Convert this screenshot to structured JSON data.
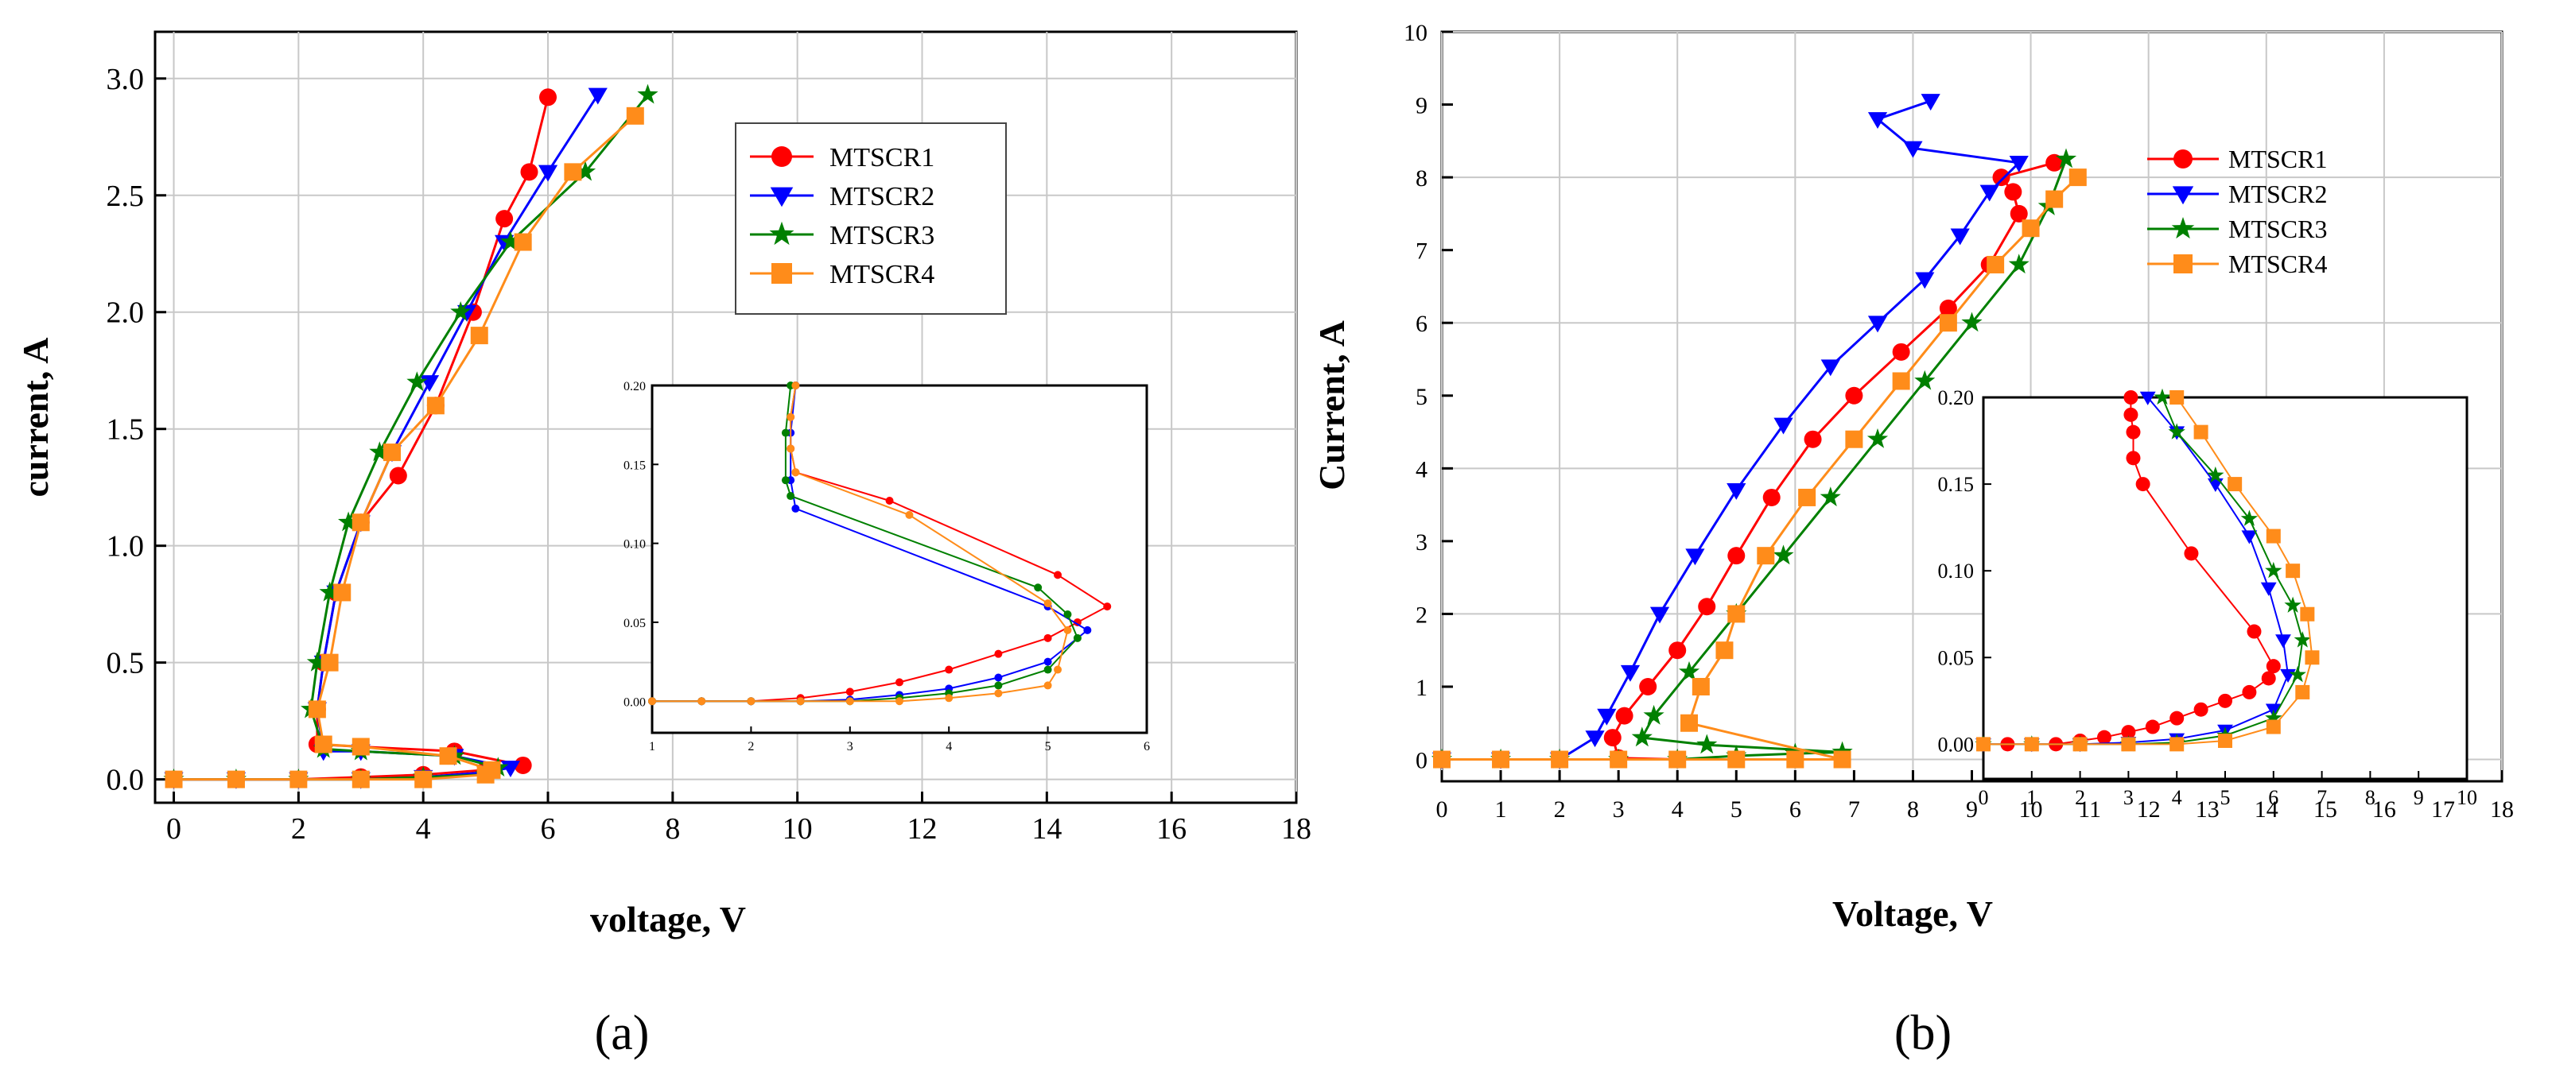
{
  "chart_data": [
    {
      "type": "scatter",
      "panel_label": "(a)",
      "xlabel": "voltage, V",
      "ylabel": "current, A",
      "xlim": [
        -0.3,
        18
      ],
      "ylim": [
        -0.1,
        3.2
      ],
      "xticks": [
        0,
        2,
        4,
        6,
        8,
        10,
        12,
        14,
        16,
        18
      ],
      "yticks": [
        0.0,
        0.5,
        1.0,
        1.5,
        2.0,
        2.5,
        3.0
      ],
      "xtick_labels": [
        "0",
        "2",
        "4",
        "6",
        "8",
        "10",
        "12",
        "14",
        "16",
        "18"
      ],
      "ytick_labels": [
        "0.0",
        "0.5",
        "1.0",
        "1.5",
        "2.0",
        "2.5",
        "3.0"
      ],
      "grid": true,
      "legend_position": "top-right",
      "series": [
        {
          "name": "MTSCR1",
          "color": "#ff0000",
          "marker": "circle",
          "x": [
            0,
            1,
            2,
            3,
            4,
            5,
            5.6,
            4.5,
            3.0,
            2.3,
            2.3,
            2.4,
            2.6,
            3.0,
            3.6,
            4.2,
            4.8,
            5.3,
            5.7,
            6.0
          ],
          "y": [
            0,
            0,
            0,
            0.01,
            0.02,
            0.04,
            0.06,
            0.12,
            0.14,
            0.15,
            0.3,
            0.5,
            0.8,
            1.1,
            1.3,
            1.6,
            2.0,
            2.4,
            2.6,
            2.92
          ]
        },
        {
          "name": "MTSCR2",
          "color": "#0000ff",
          "marker": "triangle-down",
          "x": [
            0,
            1,
            2,
            3,
            4,
            5,
            5.4,
            4.5,
            3.0,
            2.4,
            2.3,
            2.4,
            2.6,
            3.0,
            3.5,
            4.1,
            4.7,
            5.3,
            6.0,
            6.8
          ],
          "y": [
            0,
            0,
            0,
            0,
            0.01,
            0.03,
            0.05,
            0.1,
            0.12,
            0.12,
            0.3,
            0.5,
            0.8,
            1.1,
            1.4,
            1.7,
            2.0,
            2.3,
            2.6,
            2.93
          ]
        },
        {
          "name": "MTSCR3",
          "color": "#008000",
          "marker": "star",
          "x": [
            0,
            1,
            2,
            3,
            4,
            5,
            5.2,
            4.5,
            3.0,
            2.4,
            2.2,
            2.3,
            2.5,
            2.8,
            3.3,
            3.9,
            4.6,
            5.4,
            6.6,
            7.6
          ],
          "y": [
            0,
            0,
            0,
            0,
            0.01,
            0.02,
            0.05,
            0.1,
            0.12,
            0.13,
            0.3,
            0.5,
            0.8,
            1.1,
            1.4,
            1.7,
            2.0,
            2.3,
            2.6,
            2.93
          ]
        },
        {
          "name": "MTSCR4",
          "color": "#ff8c1a",
          "marker": "square",
          "x": [
            0,
            1,
            2,
            3,
            4,
            5,
            5.1,
            4.4,
            3.0,
            2.4,
            2.3,
            2.5,
            2.7,
            3.0,
            3.5,
            4.2,
            4.9,
            5.6,
            6.4,
            7.4
          ],
          "y": [
            0,
            0,
            0,
            0,
            0,
            0.02,
            0.04,
            0.1,
            0.14,
            0.15,
            0.3,
            0.5,
            0.8,
            1.1,
            1.4,
            1.6,
            1.9,
            2.3,
            2.6,
            2.84
          ]
        }
      ],
      "inset": {
        "xlim": [
          1,
          6
        ],
        "ylim": [
          -0.02,
          0.2
        ],
        "xticks": [
          1,
          2,
          3,
          4,
          5,
          6
        ],
        "yticks": [
          0.0,
          0.05,
          0.1,
          0.15,
          0.2
        ],
        "xtick_labels": [
          "1",
          "2",
          "3",
          "4",
          "5",
          "6"
        ],
        "ytick_labels": [
          "0.00",
          "0.05",
          "0.10",
          "0.15",
          "0.20"
        ],
        "series": [
          {
            "name": "MTSCR1",
            "x": [
              1,
              1.5,
              2,
              2.5,
              3,
              3.5,
              4,
              4.5,
              5,
              5.3,
              5.6,
              5.1,
              3.4,
              2.45,
              2.4,
              2.4,
              2.45
            ],
            "y": [
              0,
              0,
              0,
              0.002,
              0.006,
              0.012,
              0.02,
              0.03,
              0.04,
              0.05,
              0.06,
              0.08,
              0.127,
              0.145,
              0.16,
              0.18,
              0.2
            ]
          },
          {
            "name": "MTSCR2",
            "x": [
              1,
              1.5,
              2,
              2.5,
              3,
              3.5,
              4,
              4.5,
              5,
              5.4,
              5.0,
              2.45,
              2.4,
              2.4,
              2.45
            ],
            "y": [
              0,
              0,
              0,
              0,
              0.001,
              0.004,
              0.008,
              0.015,
              0.025,
              0.045,
              0.06,
              0.122,
              0.14,
              0.17,
              0.2
            ]
          },
          {
            "name": "MTSCR3",
            "x": [
              1,
              1.5,
              2,
              2.5,
              3,
              3.5,
              4,
              4.5,
              5,
              5.3,
              5.2,
              4.9,
              2.4,
              2.35,
              2.35,
              2.4
            ],
            "y": [
              0,
              0,
              0,
              0,
              0,
              0.002,
              0.005,
              0.01,
              0.02,
              0.04,
              0.055,
              0.072,
              0.13,
              0.14,
              0.17,
              0.2
            ]
          },
          {
            "name": "MTSCR4",
            "x": [
              1,
              1.5,
              2,
              2.5,
              3,
              3.5,
              4,
              4.5,
              5,
              5.1,
              5.2,
              5.0,
              3.6,
              2.45,
              2.4,
              2.4,
              2.45
            ],
            "y": [
              0,
              0,
              0,
              0,
              0,
              0,
              0.002,
              0.005,
              0.01,
              0.02,
              0.045,
              0.062,
              0.118,
              0.145,
              0.16,
              0.18,
              0.2
            ]
          }
        ]
      }
    },
    {
      "type": "scatter",
      "panel_label": "(b)",
      "xlabel": "Voltage, V",
      "ylabel": "Current, A",
      "xlim": [
        0,
        18
      ],
      "ylim": [
        -0.3,
        10
      ],
      "xticks": [
        0,
        1,
        2,
        3,
        4,
        5,
        6,
        7,
        8,
        9,
        10,
        11,
        12,
        13,
        14,
        15,
        16,
        17,
        18
      ],
      "yticks": [
        0,
        1,
        2,
        3,
        4,
        5,
        6,
        7,
        8,
        9,
        10
      ],
      "xtick_labels": [
        "0",
        "1",
        "2",
        "3",
        "4",
        "5",
        "6",
        "7",
        "8",
        "9",
        "10",
        "11",
        "12",
        "13",
        "14",
        "15",
        "16",
        "17",
        "18"
      ],
      "ytick_labels": [
        "0",
        "1",
        "2",
        "3",
        "4",
        "5",
        "6",
        "7",
        "8",
        "9",
        "10"
      ],
      "grid": true,
      "legend_position": "top-right",
      "series": [
        {
          "name": "MTSCR1",
          "color": "#ff0000",
          "marker": "circle",
          "x": [
            0,
            1,
            2,
            3,
            4,
            5,
            6,
            5,
            4,
            3.0,
            2.9,
            3.1,
            3.5,
            4.0,
            4.5,
            5.0,
            5.6,
            6.3,
            7.0,
            7.8,
            8.6,
            9.3,
            9.8,
            9.7,
            9.5,
            10.4
          ],
          "y": [
            0,
            0,
            0,
            0,
            0,
            0,
            0,
            0,
            0,
            0.02,
            0.3,
            0.6,
            1.0,
            1.5,
            2.1,
            2.8,
            3.6,
            4.4,
            5.0,
            5.6,
            6.2,
            6.8,
            7.5,
            7.8,
            8.0,
            8.2
          ]
        },
        {
          "name": "MTSCR2",
          "color": "#0000ff",
          "marker": "triangle-down",
          "x": [
            0,
            1,
            2,
            2.6,
            2.8,
            3.2,
            3.7,
            4.3,
            5.0,
            5.8,
            6.6,
            7.4,
            8.2,
            8.8,
            9.3,
            9.8,
            8.0,
            7.4,
            8.3
          ],
          "y": [
            0,
            0,
            0,
            0.3,
            0.6,
            1.2,
            2.0,
            2.8,
            3.7,
            4.6,
            5.4,
            6.0,
            6.6,
            7.2,
            7.8,
            8.2,
            8.4,
            8.8,
            9.05
          ]
        },
        {
          "name": "MTSCR3",
          "color": "#008000",
          "marker": "star",
          "x": [
            0,
            1,
            2,
            3,
            4,
            5,
            6,
            6.8,
            4.5,
            3.4,
            3.6,
            4.2,
            5.0,
            5.8,
            6.6,
            7.4,
            8.2,
            9.0,
            9.8,
            10.3,
            10.6
          ],
          "y": [
            0,
            0,
            0,
            0,
            0,
            0.05,
            0.08,
            0.1,
            0.2,
            0.3,
            0.6,
            1.2,
            2.0,
            2.8,
            3.6,
            4.4,
            5.2,
            6.0,
            6.8,
            7.6,
            8.25
          ]
        },
        {
          "name": "MTSCR4",
          "color": "#ff8c1a",
          "marker": "square",
          "x": [
            0,
            1,
            2,
            3,
            4,
            5,
            6,
            6.8,
            4.2,
            4.4,
            4.8,
            5.0,
            5.5,
            6.2,
            7.0,
            7.8,
            8.6,
            9.4,
            10.0,
            10.4,
            10.8
          ],
          "y": [
            0,
            0,
            0,
            0,
            0,
            0,
            0,
            0,
            0.5,
            1.0,
            1.5,
            2.0,
            2.8,
            3.6,
            4.4,
            5.2,
            6.0,
            6.8,
            7.3,
            7.7,
            8.0
          ]
        }
      ],
      "inset": {
        "xlim": [
          0,
          10
        ],
        "ylim": [
          -0.02,
          0.2
        ],
        "xticks": [
          0,
          1,
          2,
          3,
          4,
          5,
          6,
          7,
          8,
          9,
          10
        ],
        "yticks": [
          0.0,
          0.05,
          0.1,
          0.15,
          0.2
        ],
        "xtick_labels": [
          "0",
          "1",
          "2",
          "3",
          "4",
          "5",
          "6",
          "7",
          "8",
          "9",
          "10"
        ],
        "ytick_labels": [
          "0.00",
          "0.05",
          "0.10",
          "0.15",
          "0.20"
        ],
        "series": [
          {
            "name": "MTSCR1",
            "x": [
              0,
              0.5,
              1,
              1.5,
              2,
              2.5,
              3,
              3.5,
              4,
              4.5,
              5,
              5.5,
              5.9,
              6.0,
              5.6,
              4.3,
              3.3,
              3.1,
              3.1,
              3.05,
              3.05
            ],
            "y": [
              0,
              0,
              0,
              0,
              0.002,
              0.004,
              0.007,
              0.01,
              0.015,
              0.02,
              0.025,
              0.03,
              0.038,
              0.045,
              0.065,
              0.11,
              0.15,
              0.165,
              0.18,
              0.19,
              0.2
            ]
          },
          {
            "name": "MTSCR2",
            "x": [
              0,
              1,
              2,
              3,
              4,
              5,
              6,
              6.3,
              6.2,
              5.9,
              5.5,
              4.8,
              4.0,
              3.4
            ],
            "y": [
              0,
              0,
              0,
              0.001,
              0.003,
              0.008,
              0.02,
              0.04,
              0.06,
              0.09,
              0.12,
              0.15,
              0.18,
              0.2
            ]
          },
          {
            "name": "MTSCR3",
            "x": [
              0,
              1,
              2,
              3,
              4,
              5,
              6,
              6.5,
              6.6,
              6.4,
              6.0,
              5.5,
              4.8,
              4.0,
              3.7
            ],
            "y": [
              0,
              0,
              0,
              0,
              0.001,
              0.005,
              0.015,
              0.04,
              0.06,
              0.08,
              0.1,
              0.13,
              0.155,
              0.18,
              0.2
            ]
          },
          {
            "name": "MTSCR4",
            "x": [
              0,
              1,
              2,
              3,
              4,
              5,
              6,
              6.6,
              6.8,
              6.7,
              6.4,
              6.0,
              5.2,
              4.5,
              4.0
            ],
            "y": [
              0,
              0,
              0,
              0,
              0,
              0.002,
              0.01,
              0.03,
              0.05,
              0.075,
              0.1,
              0.12,
              0.15,
              0.18,
              0.2
            ]
          }
        ]
      }
    }
  ]
}
